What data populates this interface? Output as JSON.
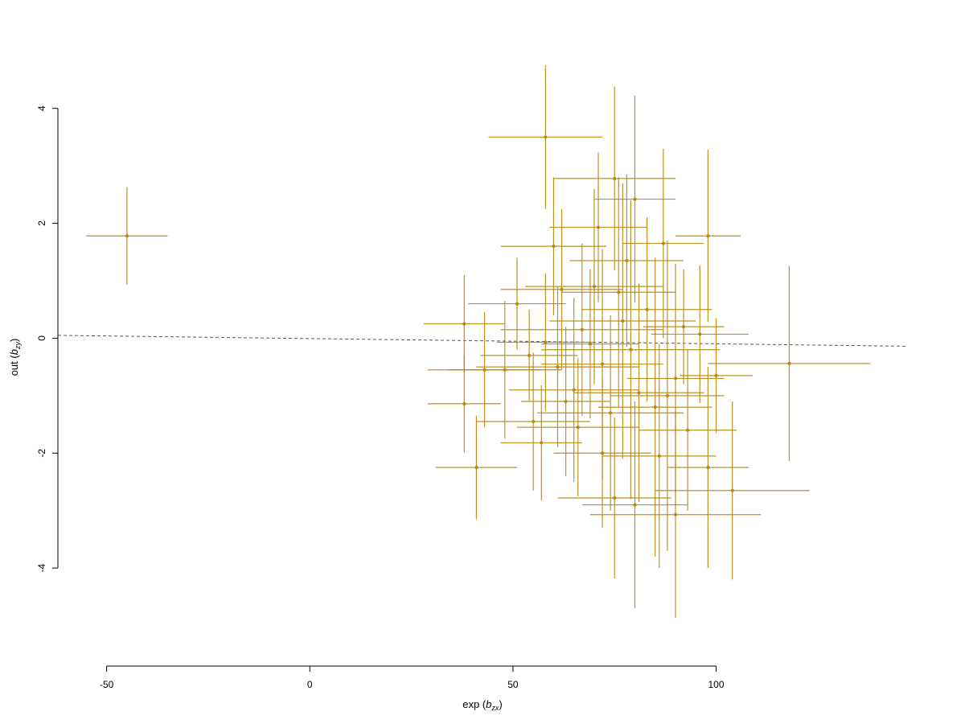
{
  "chart_data": {
    "type": "scatter",
    "title": "",
    "xlabel": "exp",
    "xlabel_sub": "zx",
    "ylabel": "out",
    "ylabel_sub": "zy",
    "xlim": [
      -62,
      147
    ],
    "ylim": [
      -5.3,
      4.5
    ],
    "x_ticks": [
      -50,
      0,
      50,
      100
    ],
    "x_tick_labels": [
      "-50",
      "0",
      "50",
      "100"
    ],
    "y_ticks": [
      -4,
      -2,
      0,
      2,
      4
    ],
    "y_tick_labels": [
      "-4",
      "-2",
      "0",
      "2",
      "4"
    ],
    "grid": false,
    "legend": "none",
    "colors": {
      "points": "#B8860B",
      "regression": "#555555"
    },
    "regression_line": {
      "style": "dashed",
      "x": [
        -62,
        147
      ],
      "y": [
        0.05,
        -0.14
      ]
    },
    "series": [
      {
        "points": [
          {
            "x": -45,
            "y": 1.78,
            "xerr": 10,
            "yerr": 0.85
          },
          {
            "x": 58,
            "y": 3.5,
            "xerr": 14,
            "yerr": 1.25
          },
          {
            "x": 75,
            "y": 2.78,
            "xerr": 15,
            "yerr": 1.6
          },
          {
            "x": 98,
            "y": 1.78,
            "xerr": 8,
            "yerr": 1.5
          },
          {
            "x": 80,
            "y": 2.42,
            "xerr": 10,
            "yerr": 1.8
          },
          {
            "x": 60,
            "y": 1.6,
            "xerr": 13,
            "yerr": 1.2
          },
          {
            "x": 71,
            "y": 1.93,
            "xerr": 12,
            "yerr": 1.3
          },
          {
            "x": 87,
            "y": 1.65,
            "xerr": 10,
            "yerr": 1.65
          },
          {
            "x": 78,
            "y": 1.35,
            "xerr": 14,
            "yerr": 1.5
          },
          {
            "x": 51,
            "y": 0.6,
            "xerr": 12,
            "yerr": 0.8
          },
          {
            "x": 38,
            "y": 0.25,
            "xerr": 10,
            "yerr": 0.85
          },
          {
            "x": 62,
            "y": 0.85,
            "xerr": 15,
            "yerr": 1.4
          },
          {
            "x": 76,
            "y": 0.8,
            "xerr": 14,
            "yerr": 2.0
          },
          {
            "x": 92,
            "y": 0.2,
            "xerr": 10,
            "yerr": 1.0
          },
          {
            "x": 96,
            "y": 0.07,
            "xerr": 12,
            "yerr": 1.2
          },
          {
            "x": 69,
            "y": -0.1,
            "xerr": 12,
            "yerr": 1.3
          },
          {
            "x": 118,
            "y": -0.44,
            "xerr": 20,
            "yerr": 1.7
          },
          {
            "x": 100,
            "y": -0.65,
            "xerr": 9,
            "yerr": 1.0
          },
          {
            "x": 43,
            "y": -0.55,
            "xerr": 14,
            "yerr": 1.0
          },
          {
            "x": 38,
            "y": -1.14,
            "xerr": 9,
            "yerr": 0.85
          },
          {
            "x": 48,
            "y": -0.55,
            "xerr": 14,
            "yerr": 1.2
          },
          {
            "x": 54,
            "y": -0.3,
            "xerr": 12,
            "yerr": 0.8
          },
          {
            "x": 58,
            "y": -0.07,
            "xerr": 12,
            "yerr": 1.2
          },
          {
            "x": 65,
            "y": -0.9,
            "xerr": 16,
            "yerr": 1.6
          },
          {
            "x": 72,
            "y": -0.45,
            "xerr": 15,
            "yerr": 2.0
          },
          {
            "x": 81,
            "y": -0.95,
            "xerr": 16,
            "yerr": 1.9
          },
          {
            "x": 85,
            "y": -1.2,
            "xerr": 14,
            "yerr": 2.6
          },
          {
            "x": 90,
            "y": -0.7,
            "xerr": 12,
            "yerr": 2.0
          },
          {
            "x": 66,
            "y": -1.55,
            "xerr": 15,
            "yerr": 1.2
          },
          {
            "x": 57,
            "y": -1.82,
            "xerr": 10,
            "yerr": 1.0
          },
          {
            "x": 41,
            "y": -2.25,
            "xerr": 10,
            "yerr": 0.9
          },
          {
            "x": 72,
            "y": -2.0,
            "xerr": 12,
            "yerr": 1.3
          },
          {
            "x": 86,
            "y": -2.05,
            "xerr": 14,
            "yerr": 1.95
          },
          {
            "x": 98,
            "y": -2.25,
            "xerr": 10,
            "yerr": 1.75
          },
          {
            "x": 104,
            "y": -2.65,
            "xerr": 19,
            "yerr": 1.55
          },
          {
            "x": 75,
            "y": -2.78,
            "xerr": 14,
            "yerr": 1.4
          },
          {
            "x": 80,
            "y": -2.9,
            "xerr": 13,
            "yerr": 1.8
          },
          {
            "x": 90,
            "y": -3.07,
            "xerr": 21,
            "yerr": 1.8
          },
          {
            "x": 55,
            "y": -1.45,
            "xerr": 14,
            "yerr": 1.2
          },
          {
            "x": 61,
            "y": -0.5,
            "xerr": 20,
            "yerr": 1.4
          },
          {
            "x": 77,
            "y": 0.3,
            "xerr": 18,
            "yerr": 2.4
          },
          {
            "x": 79,
            "y": -0.2,
            "xerr": 22,
            "yerr": 2.6
          },
          {
            "x": 83,
            "y": 0.5,
            "xerr": 16,
            "yerr": 1.6
          },
          {
            "x": 88,
            "y": -1.0,
            "xerr": 14,
            "yerr": 2.7
          },
          {
            "x": 67,
            "y": 0.15,
            "xerr": 20,
            "yerr": 1.5
          },
          {
            "x": 74,
            "y": -1.3,
            "xerr": 18,
            "yerr": 1.7
          },
          {
            "x": 63,
            "y": -1.1,
            "xerr": 11,
            "yerr": 1.3
          },
          {
            "x": 93,
            "y": -1.6,
            "xerr": 12,
            "yerr": 1.4
          },
          {
            "x": 70,
            "y": 0.9,
            "xerr": 17,
            "yerr": 1.7
          }
        ]
      }
    ]
  }
}
